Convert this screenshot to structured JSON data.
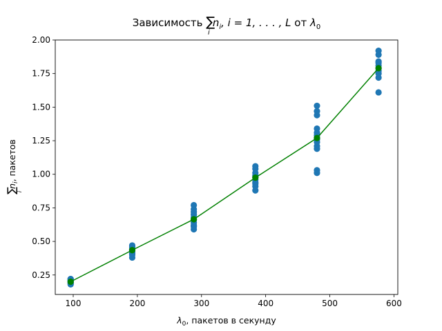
{
  "chart_data": {
    "type": "scatter",
    "title": {
      "prefix": "Зависимость ",
      "sum_symbol": "∑",
      "sum_index": "i",
      "n": "n",
      "n_sub": "i",
      "range": ", i = 1, . . . , L",
      "from_word": " от ",
      "lambda": "λ",
      "lambda_sub": "0"
    },
    "xlabel": {
      "lambda": "λ",
      "lambda_sub": "0",
      "text": ", пакетов в секунду"
    },
    "ylabel": {
      "sum_symbol": "∑",
      "sum_index": "i",
      "n": "n",
      "n_sub": "i",
      "text": ", пакетов"
    },
    "xlim": [
      72,
      606
    ],
    "ylim": [
      0.105,
      2.0
    ],
    "xticks": [
      100,
      200,
      300,
      400,
      500,
      600
    ],
    "xtick_labels": [
      "100",
      "200",
      "300",
      "400",
      "500",
      "600"
    ],
    "yticks": [
      0.25,
      0.5,
      0.75,
      1.0,
      1.25,
      1.5,
      1.75,
      2.0
    ],
    "ytick_labels": [
      "0.25",
      "0.50",
      "0.75",
      "1.00",
      "1.25",
      "1.50",
      "1.75",
      "2.00"
    ],
    "grid": false,
    "legend": "none",
    "colors": {
      "scatter": "#1f77b4",
      "mean": "#008000"
    },
    "series": [
      {
        "kind": "scatter",
        "color": "#1f77b4",
        "x": [
          96,
          96,
          96,
          96,
          96,
          96,
          96,
          96,
          96,
          96,
          192,
          192,
          192,
          192,
          192,
          192,
          192,
          192,
          192,
          192,
          288,
          288,
          288,
          288,
          288,
          288,
          288,
          288,
          288,
          288,
          288,
          384,
          384,
          384,
          384,
          384,
          384,
          384,
          384,
          384,
          384,
          480,
          480,
          480,
          480,
          480,
          480,
          480,
          480,
          480,
          480,
          480,
          480,
          480,
          576,
          576,
          576,
          576,
          576,
          576,
          576,
          576,
          576,
          576
        ],
        "y": [
          0.18,
          0.19,
          0.2,
          0.2,
          0.21,
          0.21,
          0.22,
          0.22,
          0.19,
          0.21,
          0.38,
          0.4,
          0.42,
          0.43,
          0.44,
          0.45,
          0.46,
          0.47,
          0.41,
          0.44,
          0.59,
          0.62,
          0.64,
          0.66,
          0.68,
          0.7,
          0.72,
          0.74,
          0.77,
          0.61,
          0.67,
          0.88,
          0.91,
          0.94,
          0.96,
          0.98,
          0.99,
          1.01,
          1.04,
          1.06,
          0.93,
          1.01,
          1.03,
          1.19,
          1.21,
          1.24,
          1.27,
          1.29,
          1.31,
          1.34,
          1.44,
          1.47,
          1.51,
          1.26,
          1.61,
          1.72,
          1.75,
          1.77,
          1.79,
          1.81,
          1.84,
          1.89,
          1.92,
          1.83
        ]
      },
      {
        "kind": "line",
        "color": "#008000",
        "marker": "circle",
        "x": [
          96,
          192,
          288,
          384,
          480,
          576
        ],
        "y": [
          0.2,
          0.435,
          0.665,
          0.975,
          1.27,
          1.79
        ]
      }
    ]
  }
}
